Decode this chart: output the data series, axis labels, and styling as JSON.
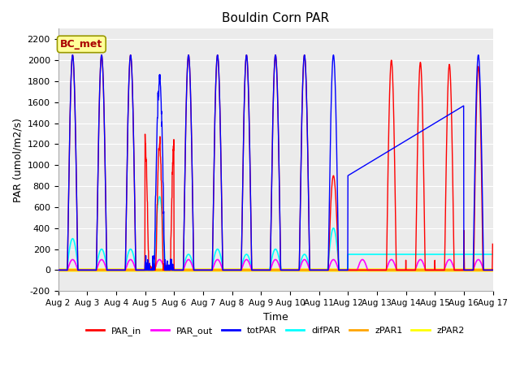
{
  "title": "Bouldin Corn PAR",
  "xlabel": "Time",
  "ylabel": "PAR (umol/m2/s)",
  "ylim": [
    -200,
    2300
  ],
  "yticks": [
    -200,
    0,
    200,
    400,
    600,
    800,
    1000,
    1200,
    1400,
    1600,
    1800,
    2000,
    2200
  ],
  "bg_color": "#ebebeb",
  "line_colors": {
    "PAR_in": "#ff0000",
    "PAR_out": "#ff00ff",
    "totPAR": "#0000ff",
    "difPAR": "#00ffff",
    "zPAR1": "#ffa500",
    "zPAR2": "#ffff00"
  },
  "bc_met_label": "BC_met",
  "bc_met_color": "#aa0000",
  "bc_met_bg": "#ffff99",
  "start_day": 2,
  "end_day": 17,
  "pts_per_day": 144,
  "figsize": [
    6.4,
    4.8
  ],
  "dpi": 100
}
